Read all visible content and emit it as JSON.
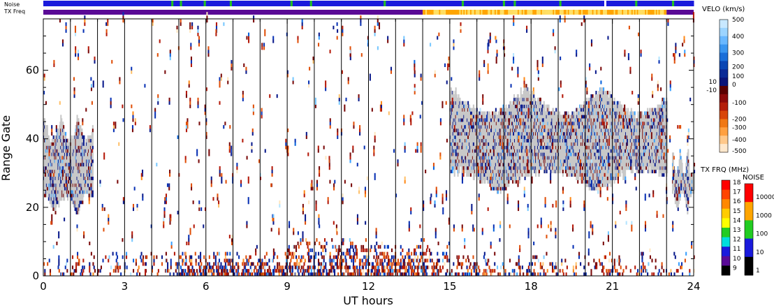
{
  "chart_data": {
    "type": "heatmap",
    "xlabel": "UT hours",
    "ylabel": "Range Gate",
    "xlim": [
      0,
      24
    ],
    "ylim": [
      0,
      75
    ],
    "x_ticks": [
      "0",
      "3",
      "6",
      "9",
      "12",
      "15",
      "18",
      "21",
      "24"
    ],
    "y_ticks": [
      "0",
      "20",
      "40",
      "60"
    ],
    "scan_boundaries_ut": [
      1,
      2,
      3,
      4,
      5,
      6,
      7,
      8,
      9,
      10,
      11,
      12,
      13,
      14,
      15,
      16,
      17,
      18,
      19,
      20,
      21,
      22,
      23
    ],
    "bands": {
      "noise": {
        "label": "Noise",
        "colors": [
          "#1a1adc",
          "#1a1adc",
          "#22c022"
        ]
      },
      "tx_freq": {
        "label": "TX Freq",
        "segments": [
          {
            "start": 0,
            "end": 14,
            "color": "#5a0a96"
          },
          {
            "start": 14,
            "end": 23,
            "color": "#ffa500"
          },
          {
            "start": 23,
            "end": 24,
            "color": "#5a0a96"
          }
        ]
      }
    },
    "scatter_regions": [
      {
        "description": "ground scatter",
        "x": [
          0,
          1.8
        ],
        "y": [
          17,
          48
        ],
        "value": "ground-scatter"
      },
      {
        "description": "ground scatter",
        "x": [
          15,
          23
        ],
        "y": [
          24,
          56
        ],
        "value": "ground-scatter"
      },
      {
        "description": "ground scatter",
        "x": [
          23.2,
          24
        ],
        "y": [
          18,
          38
        ],
        "value": "ground-scatter"
      },
      {
        "description": "near range",
        "x": [
          5,
          14
        ],
        "y": [
          0,
          8
        ],
        "value": "mixed"
      }
    ],
    "velocity_colorbar": {
      "title": "VELO (km/s)",
      "labels": [
        "500",
        "400",
        "300",
        "200",
        "100",
        "10",
        "0",
        "-10",
        "-100",
        "-200",
        "-300",
        "-400",
        "-500"
      ]
    },
    "txfreq_colorbar": {
      "title": "TX FRQ (MHz)",
      "labels": [
        "18",
        "17",
        "16",
        "15",
        "14",
        "13",
        "12",
        "11",
        "10",
        "9"
      ],
      "colors": [
        "#ff0000",
        "#ff4400",
        "#ff8800",
        "#ffcc00",
        "#ffff00",
        "#22cc22",
        "#00dddd",
        "#1a1adc",
        "#5a0a96",
        "#000000"
      ]
    },
    "noise_colorbar": {
      "title": "NOISE",
      "labels": [
        "10000",
        "1000",
        "100",
        "10",
        "1"
      ],
      "colors": [
        "#ff0000",
        "#ffa500",
        "#22cc22",
        "#1a1adc",
        "#000000"
      ]
    },
    "palette": {
      "ground_scatter": "#c8c8c8",
      "vel_pos": [
        "#b4e4ff",
        "#78c8ff",
        "#3aa0ff",
        "#0a64dc",
        "#0a32b4",
        "#0a1a8c"
      ],
      "vel_neg": [
        "#7a0a0a",
        "#b41a0a",
        "#e0500a",
        "#ff8a1a",
        "#ffc06a",
        "#ffe6c0"
      ]
    }
  },
  "bands_labels": {
    "noise": "Noise",
    "txfreq": "TX Freq"
  }
}
